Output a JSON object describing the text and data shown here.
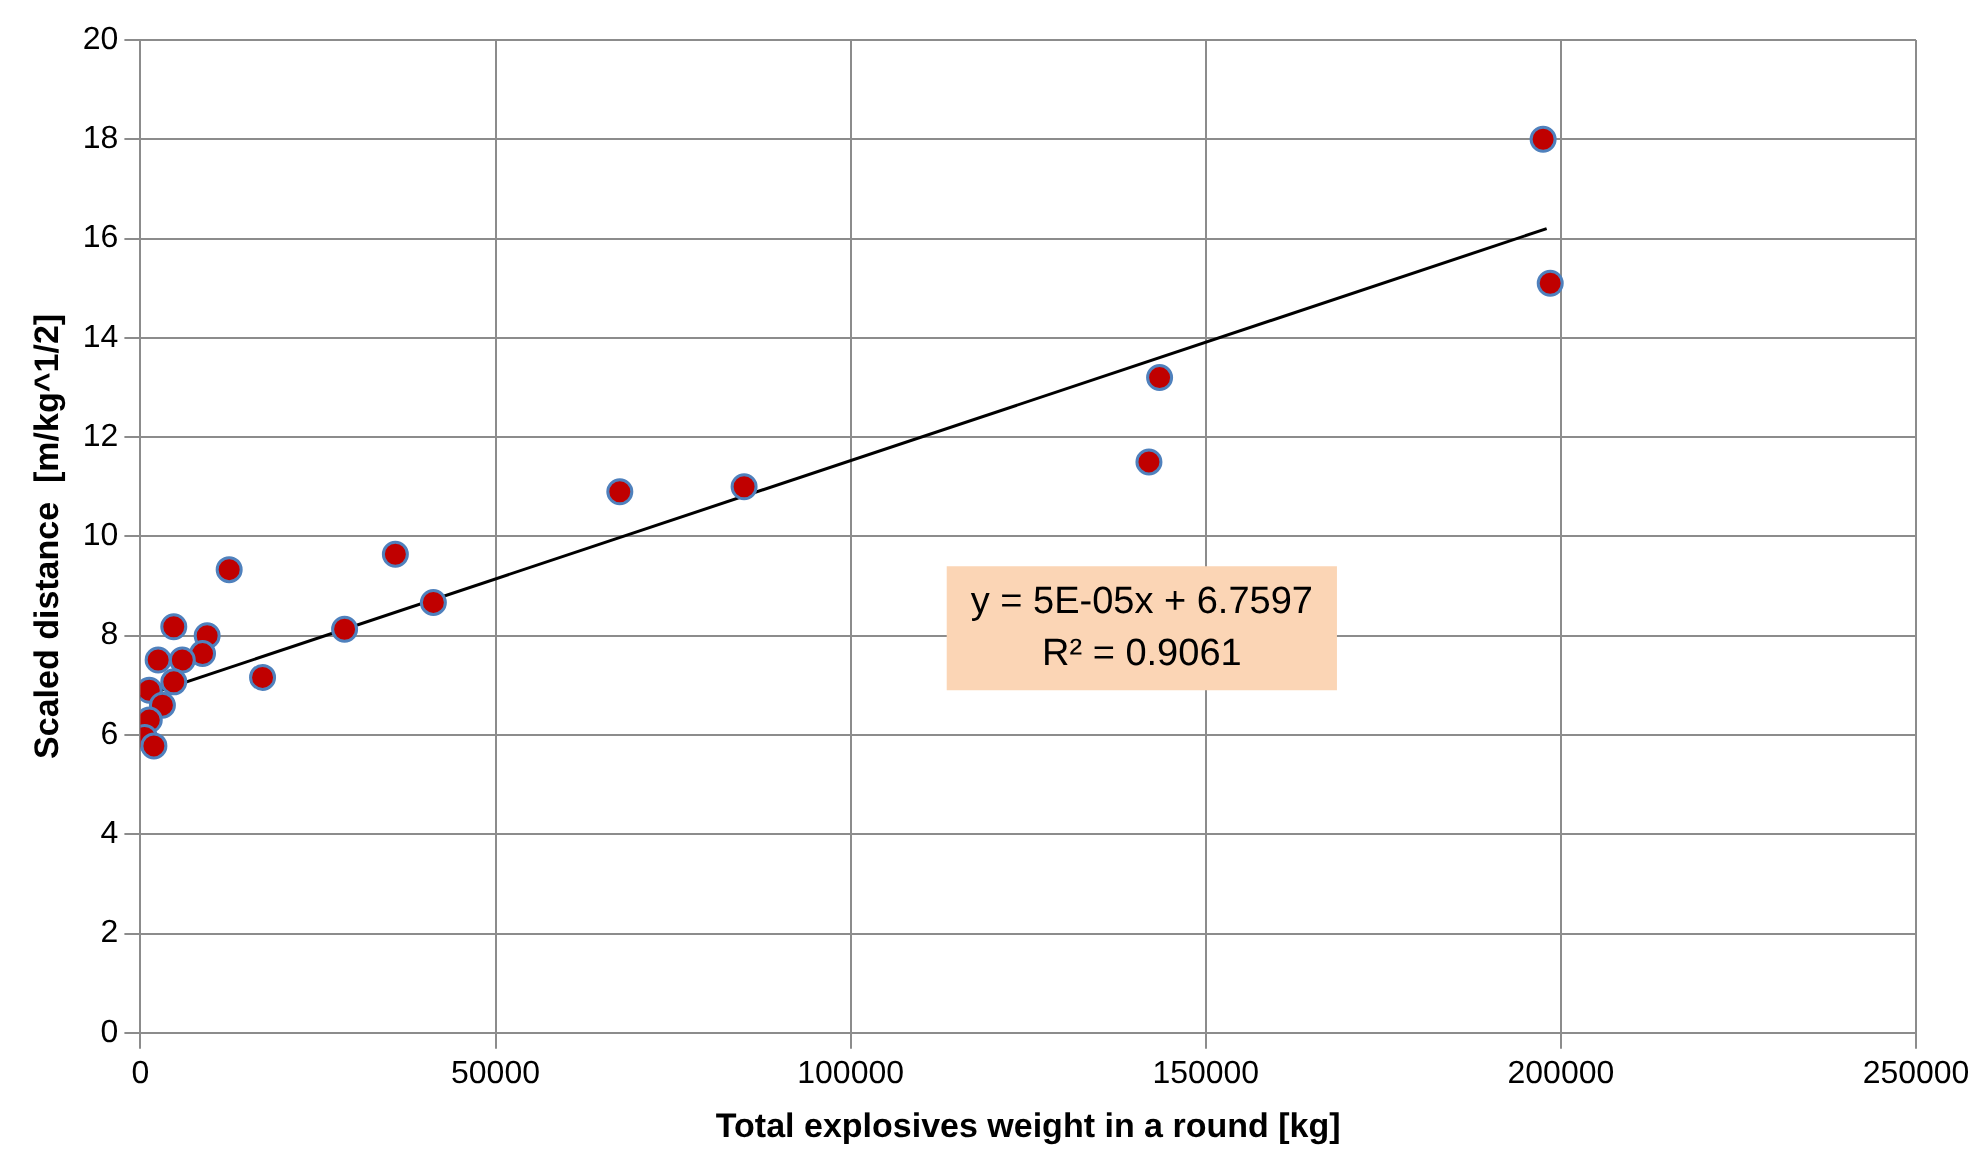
{
  "chart_data": {
    "type": "scatter",
    "xlabel": "Total explosives weight in a round [kg]",
    "ylabel": "Scaled distance  [m/kg^1/2]",
    "xlim": [
      0,
      250000
    ],
    "xticks": [
      0,
      50000,
      100000,
      150000,
      200000,
      250000
    ],
    "ylim": [
      0,
      20
    ],
    "yticks": [
      0,
      2,
      4,
      6,
      8,
      10,
      12,
      14,
      16,
      18,
      20
    ],
    "grid": true,
    "series": [
      {
        "marker": "circle",
        "color": "#c00000",
        "x": [
          197500,
          198500,
          143500,
          142000,
          85000,
          67500,
          41250,
          35900,
          28750,
          17200,
          12500,
          4700,
          9400,
          8750,
          5900,
          2500,
          4700,
          1250,
          3100,
          1250,
          600,
          1900
        ],
        "values": [
          18.0,
          15.1,
          13.2,
          11.5,
          11.0,
          10.9,
          8.67,
          9.64,
          8.13,
          7.16,
          9.33,
          8.18,
          8.0,
          7.64,
          7.51,
          7.51,
          7.07,
          6.9,
          6.6,
          6.3,
          5.95,
          5.78
        ]
      },
      {
        "type": "line",
        "color": "#000000",
        "x": [
          0,
          198000
        ],
        "values": [
          6.76,
          16.2
        ]
      }
    ],
    "annotations": [
      "y = 5E-05x + 6.7597",
      "R² = 0.9061"
    ]
  }
}
